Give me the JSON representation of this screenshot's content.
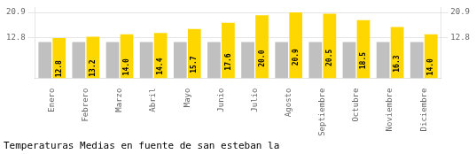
{
  "chart_data": {
    "type": "bar",
    "title": "Temperaturas Medias en fuente de san esteban la",
    "categories": [
      "Enero",
      "Febrero",
      "Marzo",
      "Abril",
      "Mayo",
      "Junio",
      "Julio",
      "Agosto",
      "Septiembre",
      "Octubre",
      "Noviembre",
      "Diciembre"
    ],
    "series": [
      {
        "color": "#C0C0C0",
        "values": [
          11.5,
          11.5,
          11.5,
          11.5,
          11.5,
          11.5,
          11.5,
          11.5,
          11.5,
          11.5,
          11.5,
          11.5
        ]
      },
      {
        "color": "#FFD700",
        "values": [
          12.8,
          13.2,
          14.0,
          14.4,
          15.7,
          17.6,
          20.0,
          20.9,
          20.5,
          18.5,
          16.3,
          14.0
        ],
        "value_labels": [
          "12.8",
          "13.2",
          "14.0",
          "14.4",
          "15.7",
          "17.6",
          "20.0",
          "20.9",
          "20.5",
          "18.5",
          "16.3",
          "14.0"
        ],
        "data_labels": true
      }
    ],
    "ylim": [
      0,
      22.5
    ],
    "yticks": [
      12.8,
      20.9
    ],
    "y2lim": [
      0,
      22.5
    ],
    "y2ticks": [
      12.8,
      20.9
    ],
    "grid": true
  }
}
